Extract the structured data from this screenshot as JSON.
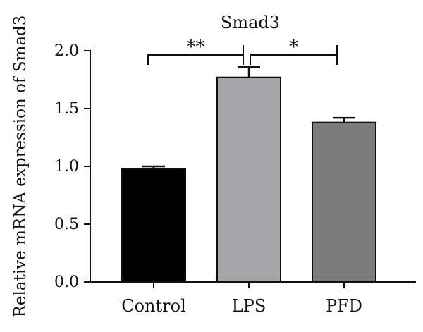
{
  "chart_data": {
    "type": "bar",
    "title": "Smad3",
    "ylabel": "Relative mRNA expression of Smad3",
    "xlabel": "",
    "categories": [
      "Control",
      "LPS",
      "PFD"
    ],
    "values": [
      0.98,
      1.77,
      1.38
    ],
    "errors": [
      0.02,
      0.09,
      0.04
    ],
    "ylim": [
      0,
      2.0
    ],
    "yticks": [
      "0.0",
      "0.5",
      "1.0",
      "1.5",
      "2.0"
    ],
    "colors": [
      "#000000",
      "#a5a5a9",
      "#7c7c7c"
    ],
    "grid": false,
    "significance": [
      {
        "from": "Control",
        "to": "LPS",
        "label": "**"
      },
      {
        "from": "LPS",
        "to": "PFD",
        "label": "*"
      }
    ]
  }
}
